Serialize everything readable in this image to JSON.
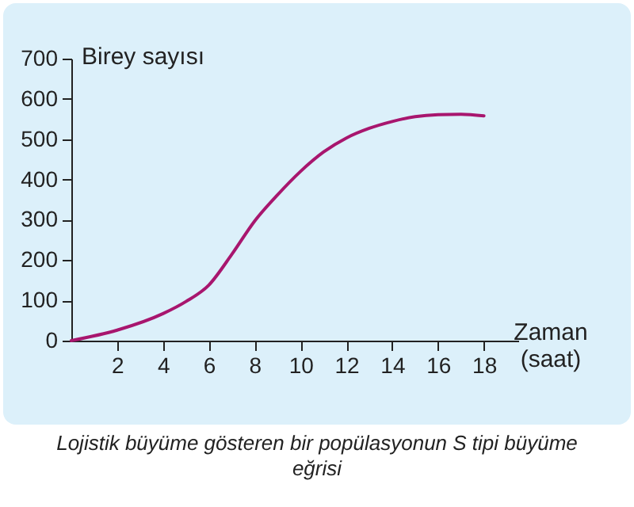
{
  "chart_data": {
    "type": "line",
    "xlabel": "Zaman (saat)",
    "ylabel": "Birey sayısı",
    "x": [
      0,
      2,
      4,
      5,
      6,
      7,
      8,
      9,
      10,
      11,
      12,
      13,
      14,
      15,
      16,
      17,
      18
    ],
    "series": [
      {
        "color": "#a8166e",
        "values": [
          0,
          26,
          67,
          97,
          138,
          214,
          297,
          362,
          420,
          468,
          503,
          527,
          544,
          556,
          561,
          562,
          558
        ]
      }
    ],
    "xlim": [
      0,
      19.5
    ],
    "ylim": [
      0,
      700
    ],
    "xticks": [
      2,
      4,
      6,
      8,
      10,
      12,
      14,
      16,
      18
    ],
    "yticks": [
      0,
      100,
      200,
      300,
      400,
      500,
      600,
      700
    ],
    "grid": false,
    "marker": "none",
    "line_style": "solid",
    "annotations": [
      "Lojistik büyüme gösteren bir popülasyonun S tipi büyüme eğrisi"
    ]
  }
}
